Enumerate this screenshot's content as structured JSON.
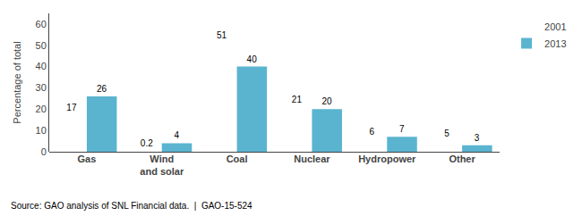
{
  "chart_data": {
    "type": "bar",
    "categories": [
      "Gas",
      "Wind\nand solar",
      "Coal",
      "Nuclear",
      "Hydropower",
      "Other"
    ],
    "series": [
      {
        "name": "2001",
        "color": "#ffffff",
        "values": [
          17,
          0.2,
          51,
          21,
          6,
          5
        ]
      },
      {
        "name": "2013",
        "color": "#5ab4cf",
        "values": [
          26,
          4,
          40,
          20,
          7,
          3
        ]
      }
    ],
    "ylabel": "Percentage of total",
    "annotations": [
      "Source: GAO analysis of SNL Financial data.  |  GAO-15-524"
    ],
    "ylim": [
      0,
      65
    ],
    "yticks": [
      0,
      10,
      20,
      30,
      40,
      50,
      60
    ],
    "data_labels": true,
    "grid": false,
    "legend": "right"
  }
}
